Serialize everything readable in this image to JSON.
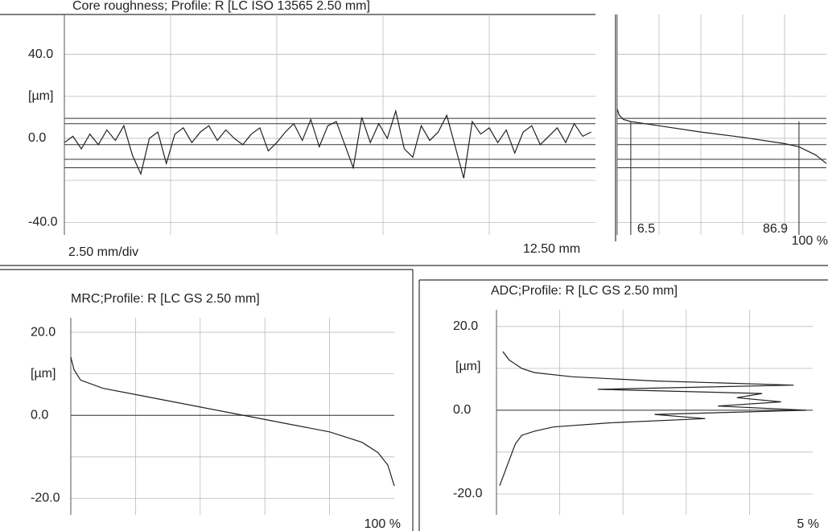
{
  "chart_data": [
    {
      "type": "line",
      "title": "Core roughness; Profile: R [LC ISO 13565 2.50 mm]",
      "y_label": "[µm]",
      "x_label": "2.50 mm/div",
      "length_label": "12.50 mm",
      "xlim": [
        0,
        12.5
      ],
      "xgrid": [
        2.5,
        5,
        7.5,
        10
      ],
      "ylim": [
        -46,
        59
      ],
      "yticks": [
        {
          "value": 40,
          "label": "40.0"
        },
        {
          "value": 0,
          "label": "0.0"
        },
        {
          "value": -40,
          "label": "-40.0"
        }
      ],
      "ygrid": [
        -40,
        -20,
        0,
        20,
        40
      ],
      "hlines": [
        9.5,
        7,
        -3,
        -10,
        -14
      ],
      "color": "#222",
      "x": [
        0,
        0.2,
        0.4,
        0.6,
        0.8,
        1,
        1.2,
        1.4,
        1.6,
        1.8,
        2,
        2.2,
        2.4,
        2.6,
        2.8,
        3,
        3.2,
        3.4,
        3.6,
        3.8,
        4,
        4.2,
        4.4,
        4.6,
        4.8,
        5,
        5.2,
        5.4,
        5.6,
        5.8,
        6,
        6.2,
        6.4,
        6.6,
        6.8,
        7,
        7.2,
        7.4,
        7.6,
        7.8,
        8,
        8.2,
        8.4,
        8.6,
        8.8,
        9,
        9.2,
        9.4,
        9.6,
        9.8,
        10,
        10.2,
        10.4,
        10.6,
        10.8,
        11,
        11.2,
        11.4,
        11.6,
        11.8,
        12,
        12.2,
        12.4
      ],
      "values": [
        -2,
        1,
        -5,
        2,
        -3,
        4,
        -1,
        6,
        -8,
        -17,
        0,
        3,
        -12,
        2,
        5,
        -2,
        3,
        6,
        -1,
        4,
        0,
        -3,
        2,
        5,
        -6,
        -2,
        3,
        7,
        -1,
        9,
        -4,
        6,
        8,
        -3,
        -14,
        10,
        -2,
        7,
        0,
        13,
        -5,
        -9,
        6,
        -1,
        3,
        11,
        -4,
        -19,
        8,
        2,
        5,
        -2,
        4,
        -7,
        3,
        6,
        -3,
        1,
        5,
        -2,
        7,
        1,
        3
      ]
    },
    {
      "type": "line",
      "xlim": [
        0,
        100
      ],
      "ylim": [
        -46,
        59
      ],
      "xgrid": [
        20,
        40,
        60,
        80
      ],
      "ygrid": [
        -40,
        -20,
        0,
        20,
        40
      ],
      "color": "#222",
      "xticks": [
        6.5,
        86.9,
        {
          "value": 100,
          "label": "100 %"
        }
      ],
      "x": [
        0,
        1,
        3,
        6.5,
        20,
        40,
        60,
        80,
        86.9,
        95,
        100
      ],
      "values": [
        14,
        11,
        9,
        8,
        6,
        3,
        0.5,
        -2.5,
        -4,
        -8,
        -12
      ]
    },
    {
      "type": "line",
      "title": "MRC;Profile: R [LC GS 2.50 mm]",
      "y_label": "[µm]",
      "xlim": [
        0,
        100
      ],
      "ylim": [
        -24,
        23.5
      ],
      "yticks": [
        {
          "value": 20,
          "label": "20.0"
        },
        {
          "value": 0,
          "label": "0.0"
        },
        {
          "value": -20,
          "label": "-20.0"
        }
      ],
      "ygrid": [
        -20,
        -10,
        0,
        10,
        20
      ],
      "xgrid": [
        20,
        40,
        60,
        80
      ],
      "xticks": [
        {
          "value": 100,
          "label": "100 %"
        }
      ],
      "color": "#222",
      "x": [
        0,
        1,
        3,
        10,
        20,
        40,
        50,
        60,
        80,
        90,
        95,
        98,
        100
      ],
      "values": [
        14,
        11,
        8.5,
        6.5,
        5,
        2,
        0.5,
        -1,
        -4,
        -6.5,
        -9,
        -12,
        -17
      ]
    },
    {
      "type": "density",
      "title": "ADC;Profile: R [LC GS 2.50 mm]",
      "y_label": "[µm]",
      "xlim": [
        0,
        5
      ],
      "ylim": [
        -25,
        24
      ],
      "yticks": [
        {
          "value": 20,
          "label": "20.0"
        },
        {
          "value": 0,
          "label": "0.0"
        },
        {
          "value": -20,
          "label": "-20.0"
        }
      ],
      "ygrid": [
        -20,
        -10,
        0,
        10,
        20
      ],
      "xgrid": [
        1,
        2,
        3,
        4
      ],
      "xticks": [
        {
          "value": 5,
          "label": "5 %"
        }
      ],
      "color": "#222",
      "y": [
        14,
        12,
        10,
        9,
        8,
        7,
        6,
        5,
        4,
        3,
        2,
        1,
        0,
        -1,
        -2,
        -3,
        -4,
        -5,
        -6,
        -8,
        -10,
        -12,
        -14,
        -16,
        -18
      ],
      "values": [
        0.1,
        0.2,
        0.4,
        0.6,
        1.2,
        2.5,
        4.7,
        1.6,
        4.2,
        3.8,
        4.5,
        3.5,
        4.9,
        2.5,
        3.3,
        1.8,
        0.9,
        0.6,
        0.4,
        0.3,
        0.25,
        0.2,
        0.15,
        0.1,
        0.05
      ]
    }
  ]
}
